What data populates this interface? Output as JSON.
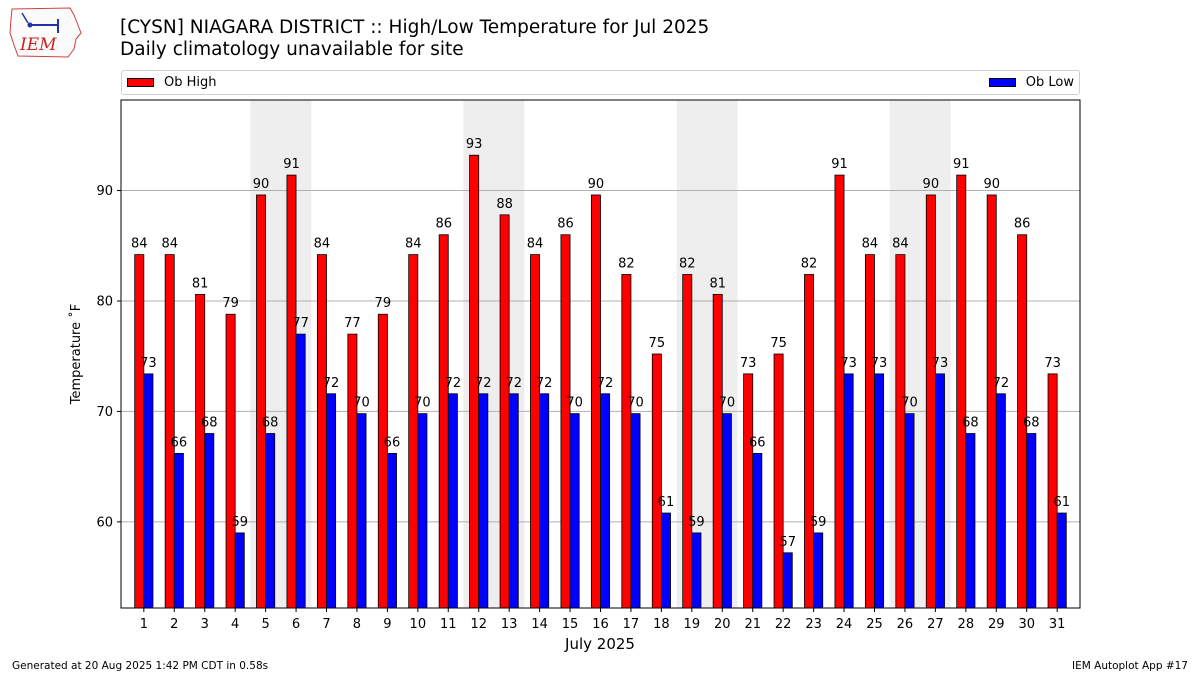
{
  "header": {
    "title_line1": "[CYSN] NIAGARA DISTRICT :: High/Low Temperature for Jul 2025",
    "title_line2": "Daily climatology unavailable for site"
  },
  "logo": {
    "text": "IEM"
  },
  "footer": {
    "generated": "Generated at 20 Aug 2025 1:42 PM CDT in 0.58s",
    "app": "IEM Autoplot App #17"
  },
  "chart_data": {
    "type": "bar",
    "categories": [
      "1",
      "2",
      "3",
      "4",
      "5",
      "6",
      "7",
      "8",
      "9",
      "10",
      "11",
      "12",
      "13",
      "14",
      "15",
      "16",
      "17",
      "18",
      "19",
      "20",
      "21",
      "22",
      "23",
      "24",
      "25",
      "26",
      "27",
      "28",
      "29",
      "30",
      "31"
    ],
    "series": [
      {
        "name": "Ob High",
        "color": "#ff0000",
        "values": [
          84.2,
          84.2,
          80.6,
          78.8,
          89.6,
          91.4,
          84.2,
          77.0,
          78.8,
          84.2,
          86.0,
          93.2,
          87.8,
          84.2,
          86.0,
          89.6,
          82.4,
          75.2,
          82.4,
          80.6,
          73.4,
          75.2,
          82.4,
          91.4,
          84.2,
          84.2,
          89.6,
          91.4,
          89.6,
          86.0,
          73.4
        ],
        "labels": [
          "84",
          "84",
          "81",
          "79",
          "90",
          "91",
          "84",
          "77",
          "79",
          "84",
          "86",
          "93",
          "88",
          "84",
          "86",
          "90",
          "82",
          "75",
          "82",
          "81",
          "73",
          "75",
          "82",
          "91",
          "84",
          "84",
          "90",
          "91",
          "90",
          "86",
          "73"
        ]
      },
      {
        "name": "Ob Low",
        "color": "#0000ff",
        "values": [
          73.4,
          66.2,
          68.0,
          59.0,
          68.0,
          77.0,
          71.6,
          69.8,
          66.2,
          69.8,
          71.6,
          71.6,
          71.6,
          71.6,
          69.8,
          71.6,
          69.8,
          60.8,
          59.0,
          69.8,
          66.2,
          57.2,
          59.0,
          73.4,
          73.4,
          69.8,
          73.4,
          68.0,
          71.6,
          68.0,
          60.8
        ],
        "labels": [
          "73",
          "66",
          "68",
          "59",
          "68",
          "77",
          "72",
          "70",
          "66",
          "70",
          "72",
          "72",
          "72",
          "72",
          "70",
          "72",
          "70",
          "61",
          "59",
          "70",
          "66",
          "57",
          "59",
          "73",
          "73",
          "70",
          "73",
          "68",
          "72",
          "68",
          "61"
        ]
      }
    ],
    "weekend_days": [
      5,
      6,
      12,
      13,
      19,
      20,
      26,
      27
    ],
    "ylim": [
      52.2,
      98.2
    ],
    "yticks": [
      "60",
      "70",
      "80",
      "90"
    ],
    "ytick_values": [
      60,
      70,
      80,
      90
    ],
    "xlabel": "July 2025",
    "ylabel": "Temperature ˚F",
    "grid": "y",
    "legend": "top"
  }
}
